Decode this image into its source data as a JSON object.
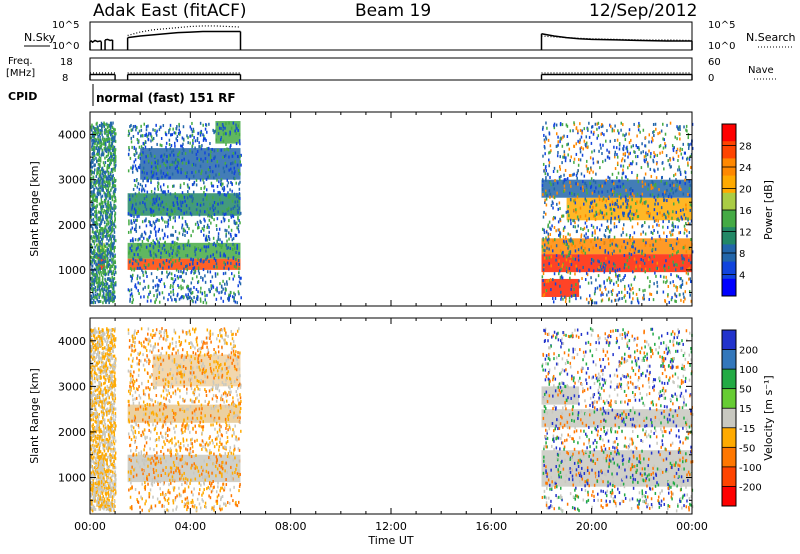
{
  "header": {
    "title": "Adak East (fitACF)",
    "beam": "Beam 19",
    "date": "12/Sep/2012"
  },
  "chart_data": [
    {
      "type": "line",
      "panel": "noise",
      "left_label": "N.Sky",
      "right_label": "N.Search",
      "left_ticks": [
        "10^5",
        "10^0"
      ],
      "right_ticks": [
        "10^5",
        "10^0"
      ],
      "xlim": [
        "00:00",
        "24:00"
      ],
      "series": [
        {
          "name": "N.Sky",
          "style": "solid",
          "segments": [
            {
              "x": [
                0.0,
                0.05,
                0.1,
                0.2,
                0.3,
                0.4,
                0.45
              ],
              "y": [
                1.5,
                1.6,
                1.4,
                1.7,
                1.5,
                1.6,
                1.5
              ]
            },
            {
              "x": [
                0.6,
                0.7,
                0.8,
                0.9
              ],
              "y": [
                1.8,
                1.9,
                1.7,
                1.8
              ]
            },
            {
              "x": [
                1.5,
                2,
                2.5,
                3,
                3.5,
                4,
                4.5,
                5,
                5.5,
                6
              ],
              "y": [
                2.2,
                2.5,
                2.7,
                2.9,
                3.1,
                3.2,
                3.3,
                3.3,
                3.3,
                3.3
              ]
            },
            {
              "x": [
                18,
                18.5,
                19,
                19.5,
                20,
                21,
                22,
                23,
                24
              ],
              "y": [
                2.9,
                2.5,
                2.2,
                2.0,
                1.9,
                1.8,
                1.7,
                1.6,
                1.6
              ]
            }
          ]
        },
        {
          "name": "N.Search",
          "style": "dotted",
          "segments": [
            {
              "x": [
                1.5,
                2,
                2.5,
                3,
                3.5,
                4,
                4.5,
                5,
                5.5,
                6
              ],
              "y": [
                2.6,
                3.2,
                3.6,
                3.8,
                4.0,
                4.2,
                4.3,
                4.3,
                4.2,
                4.1
              ]
            },
            {
              "x": [
                18,
                19,
                20,
                21,
                22,
                23,
                24
              ],
              "y": [
                2.5,
                2.2,
                2.0,
                1.9,
                1.8,
                1.8,
                1.7
              ]
            }
          ]
        }
      ]
    },
    {
      "type": "line",
      "panel": "frequency",
      "left_label_1": "Freq.",
      "left_label_2": "[MHz]",
      "right_label": "Nave",
      "cpid_label": "CPID",
      "cpid_text": "normal (fast) 151 RF",
      "left_ticks": [
        "18",
        "8"
      ],
      "right_ticks": [
        "60",
        "0"
      ],
      "ylim": [
        8,
        18
      ],
      "series": [
        {
          "name": "Freq.",
          "style": "solid",
          "segments": [
            {
              "x": [
                0,
                1
              ],
              "y": [
                10.5,
                10.5
              ]
            },
            {
              "x": [
                1.5,
                6
              ],
              "y": [
                10.5,
                10.5
              ]
            },
            {
              "x": [
                18,
                24
              ],
              "y": [
                10.5,
                10.5
              ]
            }
          ]
        },
        {
          "name": "Nave",
          "style": "dotted",
          "segments": [
            {
              "x": [
                0,
                1
              ],
              "y": [
                11.2,
                11.2
              ]
            },
            {
              "x": [
                1.5,
                6
              ],
              "y": [
                11.2,
                11.2
              ]
            },
            {
              "x": [
                18,
                24
              ],
              "y": [
                11.2,
                11.2
              ]
            }
          ]
        }
      ]
    },
    {
      "type": "heatmap",
      "panel": "power",
      "ylabel": "Slant Range [km]",
      "yticks": [
        "4000",
        "3000",
        "2000",
        "1000"
      ],
      "ylim": [
        200,
        4500
      ],
      "colorbar_label": "Power [dB]",
      "colorbar_ticks": [
        "28",
        "24",
        "20",
        "16",
        "12",
        "8",
        "4"
      ],
      "colorbar_colors": [
        "#ff0000",
        "#ff4400",
        "#ff8800",
        "#ffaa00",
        "#aacc44",
        "#44aa44",
        "#228866",
        "#2266aa",
        "#1144dd",
        "#0000ff"
      ],
      "bands": [
        {
          "t": [
            0.3,
            0.6
          ],
          "r": [
            1000,
            1300
          ],
          "color": "#ff2200"
        },
        {
          "t": [
            0.3,
            0.6
          ],
          "r": [
            1300,
            1600
          ],
          "color": "#aacc44"
        },
        {
          "t": [
            1.5,
            6.0
          ],
          "r": [
            1000,
            1250
          ],
          "color": "#ff4400"
        },
        {
          "t": [
            1.5,
            6.0
          ],
          "r": [
            1250,
            1600
          ],
          "color": "#44aa44"
        },
        {
          "t": [
            1.5,
            6.0
          ],
          "r": [
            2200,
            2700
          ],
          "color": "#228866"
        },
        {
          "t": [
            2.0,
            6.0
          ],
          "r": [
            3000,
            3700
          ],
          "color": "#2266aa"
        },
        {
          "t": [
            5.0,
            6.0
          ],
          "r": [
            3800,
            4300
          ],
          "color": "#44aa44"
        },
        {
          "t": [
            18.0,
            24.0
          ],
          "r": [
            950,
            1350
          ],
          "color": "#ff2200"
        },
        {
          "t": [
            18.0,
            24.0
          ],
          "r": [
            1350,
            1700
          ],
          "color": "#ff8800"
        },
        {
          "t": [
            19.0,
            24.0
          ],
          "r": [
            2100,
            2600
          ],
          "color": "#ffaa00"
        },
        {
          "t": [
            18.0,
            24.0
          ],
          "r": [
            2600,
            3000
          ],
          "color": "#2266aa"
        },
        {
          "t": [
            18.0,
            19.5
          ],
          "r": [
            400,
            800
          ],
          "color": "#ff2200"
        }
      ],
      "scatter": [
        {
          "t": [
            0.0,
            1.0
          ],
          "r": [
            300,
            4300
          ],
          "colors": [
            "#2266aa",
            "#44aa44"
          ]
        },
        {
          "t": [
            1.5,
            6.0
          ],
          "r": [
            300,
            4300
          ],
          "colors": [
            "#2266aa",
            "#44aa44",
            "#1144dd"
          ]
        },
        {
          "t": [
            18.0,
            24.0
          ],
          "r": [
            300,
            4300
          ],
          "colors": [
            "#2266aa",
            "#44aa44",
            "#ff8800",
            "#1144dd"
          ]
        }
      ]
    },
    {
      "type": "heatmap",
      "panel": "velocity",
      "ylabel": "Slant Range [km]",
      "yticks": [
        "4000",
        "3000",
        "2000",
        "1000"
      ],
      "ylim": [
        200,
        4500
      ],
      "xticks": [
        "00:00",
        "04:00",
        "08:00",
        "12:00",
        "16:00",
        "20:00",
        "00:00"
      ],
      "xlabel": "Time UT",
      "colorbar_label": "Velocity [m s⁻¹]",
      "colorbar_ticks": [
        "200",
        "100",
        "50",
        "15",
        "-15",
        "-50",
        "-100",
        "-200"
      ],
      "colorbar_colors": [
        "#2233cc",
        "#3377bb",
        "#22aa44",
        "#66cc33",
        "#c8c8c0",
        "#ffaa00",
        "#ff7700",
        "#ff4400",
        "#ff0000"
      ],
      "bands": [
        {
          "t": [
            0.3,
            0.6
          ],
          "r": [
            800,
            1500
          ],
          "color": "#c8c8c0"
        },
        {
          "t": [
            1.5,
            6.0
          ],
          "r": [
            900,
            1500
          ],
          "color": "#c8c8c0"
        },
        {
          "t": [
            1.5,
            6.0
          ],
          "r": [
            2200,
            2600
          ],
          "color": "#e8c890"
        },
        {
          "t": [
            2.5,
            6.0
          ],
          "r": [
            3000,
            3700
          ],
          "color": "#eed0a0"
        },
        {
          "t": [
            18.0,
            24.0
          ],
          "r": [
            800,
            1600
          ],
          "color": "#c8c8c0"
        },
        {
          "t": [
            18.0,
            24.0
          ],
          "r": [
            2100,
            2500
          ],
          "color": "#c8c8c0"
        },
        {
          "t": [
            18.0,
            19.5
          ],
          "r": [
            2600,
            3000
          ],
          "color": "#c8c8c0"
        }
      ],
      "scatter": [
        {
          "t": [
            0.0,
            1.0
          ],
          "r": [
            300,
            4300
          ],
          "colors": [
            "#ffaa00",
            "#c8c8c0"
          ]
        },
        {
          "t": [
            1.5,
            6.0
          ],
          "r": [
            300,
            4300
          ],
          "colors": [
            "#ffaa00",
            "#c8c8c0",
            "#ff7700"
          ]
        },
        {
          "t": [
            18.0,
            24.0
          ],
          "r": [
            300,
            4300
          ],
          "colors": [
            "#c8c8c0",
            "#ff7700",
            "#22aa44",
            "#2233cc"
          ]
        }
      ]
    }
  ]
}
